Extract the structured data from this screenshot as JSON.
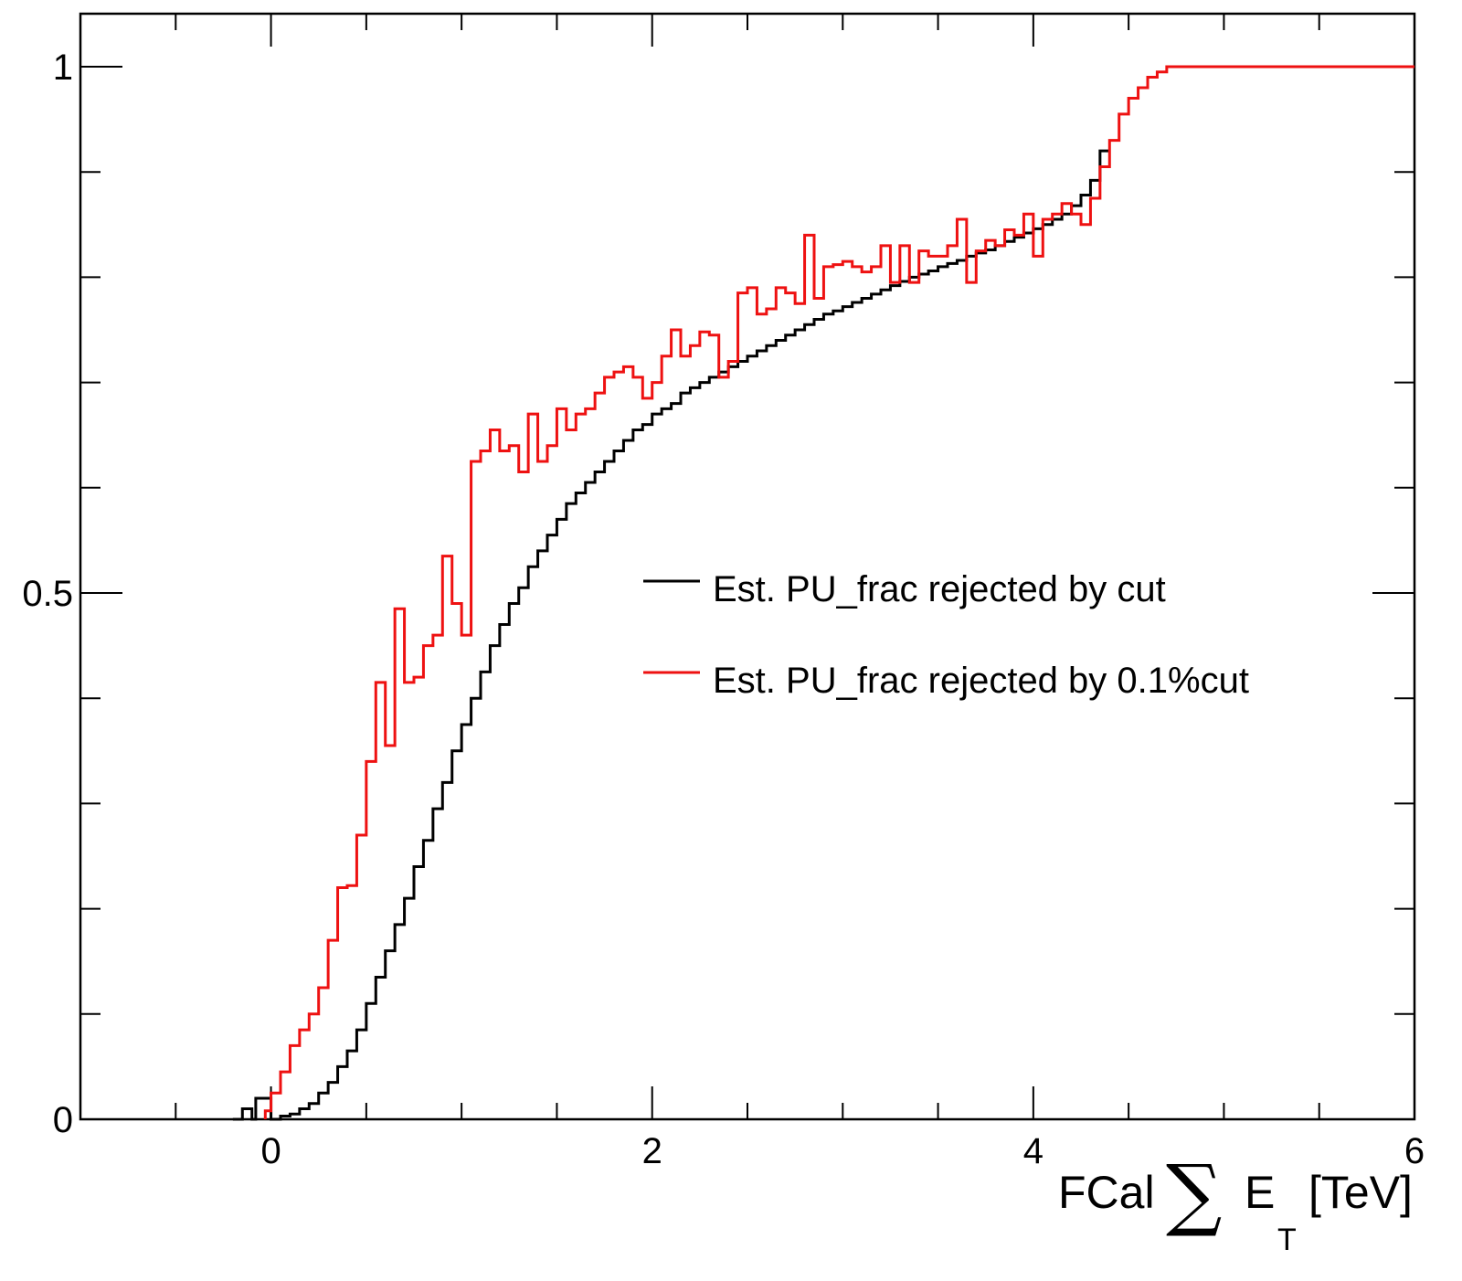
{
  "chart_data": {
    "type": "line",
    "style": "step histogram (cumulative fraction)",
    "title": "",
    "xlabel": "FCal ∑ E_T [TeV]",
    "xlabel_parts": {
      "prefix": "FCal",
      "sum_symbol": "∑",
      "var": "E",
      "subscript": "T",
      "unit": "[TeV]"
    },
    "ylabel": "",
    "xlim": [
      -1,
      6
    ],
    "ylim": [
      0,
      1.05
    ],
    "x_ticks": [
      {
        "value": 0,
        "label": "0"
      },
      {
        "value": 2,
        "label": "2"
      },
      {
        "value": 4,
        "label": "4"
      },
      {
        "value": 6,
        "label": "6"
      }
    ],
    "y_ticks": [
      {
        "value": 0,
        "label": "0"
      },
      {
        "value": 0.5,
        "label": "0.5"
      },
      {
        "value": 1,
        "label": "1"
      }
    ],
    "x_minor_step": 0.5,
    "y_minor_step": 0.1,
    "grid": false,
    "legend_position": "center-right",
    "series": [
      {
        "name": "Est. PU_frac rejected by cut",
        "color": "#000000",
        "points": [
          [
            -0.2,
            0
          ],
          [
            -0.15,
            0.01
          ],
          [
            -0.1,
            0
          ],
          [
            -0.08,
            0.02
          ],
          [
            -0.03,
            0.02
          ],
          [
            0,
            0
          ],
          [
            0.05,
            0.003
          ],
          [
            0.1,
            0.005
          ],
          [
            0.15,
            0.01
          ],
          [
            0.2,
            0.015
          ],
          [
            0.25,
            0.025
          ],
          [
            0.3,
            0.035
          ],
          [
            0.35,
            0.05
          ],
          [
            0.4,
            0.065
          ],
          [
            0.45,
            0.085
          ],
          [
            0.5,
            0.11
          ],
          [
            0.55,
            0.135
          ],
          [
            0.6,
            0.16
          ],
          [
            0.65,
            0.185
          ],
          [
            0.7,
            0.21
          ],
          [
            0.75,
            0.24
          ],
          [
            0.8,
            0.265
          ],
          [
            0.85,
            0.295
          ],
          [
            0.9,
            0.32
          ],
          [
            0.95,
            0.35
          ],
          [
            1.0,
            0.375
          ],
          [
            1.05,
            0.4
          ],
          [
            1.1,
            0.425
          ],
          [
            1.15,
            0.45
          ],
          [
            1.2,
            0.47
          ],
          [
            1.25,
            0.49
          ],
          [
            1.3,
            0.505
          ],
          [
            1.35,
            0.525
          ],
          [
            1.4,
            0.54
          ],
          [
            1.45,
            0.555
          ],
          [
            1.5,
            0.57
          ],
          [
            1.55,
            0.585
          ],
          [
            1.6,
            0.595
          ],
          [
            1.65,
            0.605
          ],
          [
            1.7,
            0.615
          ],
          [
            1.75,
            0.625
          ],
          [
            1.8,
            0.635
          ],
          [
            1.85,
            0.645
          ],
          [
            1.9,
            0.655
          ],
          [
            1.95,
            0.66
          ],
          [
            2.0,
            0.67
          ],
          [
            2.05,
            0.675
          ],
          [
            2.1,
            0.68
          ],
          [
            2.15,
            0.69
          ],
          [
            2.2,
            0.695
          ],
          [
            2.25,
            0.7
          ],
          [
            2.3,
            0.705
          ],
          [
            2.35,
            0.71
          ],
          [
            2.4,
            0.715
          ],
          [
            2.45,
            0.72
          ],
          [
            2.5,
            0.725
          ],
          [
            2.55,
            0.73
          ],
          [
            2.6,
            0.735
          ],
          [
            2.65,
            0.74
          ],
          [
            2.7,
            0.745
          ],
          [
            2.75,
            0.75
          ],
          [
            2.8,
            0.755
          ],
          [
            2.85,
            0.76
          ],
          [
            2.9,
            0.765
          ],
          [
            2.95,
            0.768
          ],
          [
            3.0,
            0.772
          ],
          [
            3.05,
            0.776
          ],
          [
            3.1,
            0.78
          ],
          [
            3.15,
            0.784
          ],
          [
            3.2,
            0.788
          ],
          [
            3.25,
            0.792
          ],
          [
            3.3,
            0.796
          ],
          [
            3.35,
            0.8
          ],
          [
            3.4,
            0.803
          ],
          [
            3.45,
            0.806
          ],
          [
            3.5,
            0.81
          ],
          [
            3.55,
            0.813
          ],
          [
            3.6,
            0.816
          ],
          [
            3.65,
            0.82
          ],
          [
            3.7,
            0.823
          ],
          [
            3.75,
            0.826
          ],
          [
            3.8,
            0.83
          ],
          [
            3.85,
            0.834
          ],
          [
            3.9,
            0.838
          ],
          [
            3.95,
            0.842
          ],
          [
            4.0,
            0.846
          ],
          [
            4.05,
            0.85
          ],
          [
            4.1,
            0.855
          ],
          [
            4.15,
            0.86
          ],
          [
            4.2,
            0.868
          ],
          [
            4.25,
            0.878
          ],
          [
            4.3,
            0.892
          ],
          [
            4.35,
            0.92
          ],
          [
            4.4,
            0.92
          ]
        ]
      },
      {
        "name": "Est. PU_frac rejected by 0.1%cut",
        "color": "#ee1111",
        "points": [
          [
            -0.03,
            0.008
          ],
          [
            0.0,
            0.025
          ],
          [
            0.05,
            0.045
          ],
          [
            0.1,
            0.07
          ],
          [
            0.15,
            0.085
          ],
          [
            0.2,
            0.1
          ],
          [
            0.25,
            0.125
          ],
          [
            0.3,
            0.17
          ],
          [
            0.35,
            0.22
          ],
          [
            0.4,
            0.222
          ],
          [
            0.45,
            0.27
          ],
          [
            0.5,
            0.34
          ],
          [
            0.55,
            0.415
          ],
          [
            0.6,
            0.355
          ],
          [
            0.65,
            0.485
          ],
          [
            0.7,
            0.415
          ],
          [
            0.75,
            0.42
          ],
          [
            0.8,
            0.45
          ],
          [
            0.85,
            0.46
          ],
          [
            0.9,
            0.535
          ],
          [
            0.95,
            0.49
          ],
          [
            1.0,
            0.46
          ],
          [
            1.05,
            0.625
          ],
          [
            1.1,
            0.635
          ],
          [
            1.15,
            0.655
          ],
          [
            1.2,
            0.635
          ],
          [
            1.25,
            0.64
          ],
          [
            1.3,
            0.615
          ],
          [
            1.35,
            0.67
          ],
          [
            1.4,
            0.625
          ],
          [
            1.45,
            0.64
          ],
          [
            1.5,
            0.675
          ],
          [
            1.55,
            0.655
          ],
          [
            1.6,
            0.67
          ],
          [
            1.65,
            0.675
          ],
          [
            1.7,
            0.69
          ],
          [
            1.75,
            0.705
          ],
          [
            1.8,
            0.71
          ],
          [
            1.85,
            0.715
          ],
          [
            1.9,
            0.705
          ],
          [
            1.95,
            0.685
          ],
          [
            2.0,
            0.7
          ],
          [
            2.05,
            0.725
          ],
          [
            2.1,
            0.75
          ],
          [
            2.15,
            0.725
          ],
          [
            2.2,
            0.735
          ],
          [
            2.25,
            0.748
          ],
          [
            2.3,
            0.745
          ],
          [
            2.35,
            0.705
          ],
          [
            2.4,
            0.72
          ],
          [
            2.45,
            0.785
          ],
          [
            2.5,
            0.79
          ],
          [
            2.55,
            0.765
          ],
          [
            2.6,
            0.77
          ],
          [
            2.65,
            0.79
          ],
          [
            2.7,
            0.785
          ],
          [
            2.75,
            0.775
          ],
          [
            2.8,
            0.84
          ],
          [
            2.85,
            0.78
          ],
          [
            2.9,
            0.81
          ],
          [
            2.95,
            0.812
          ],
          [
            3.0,
            0.815
          ],
          [
            3.05,
            0.81
          ],
          [
            3.1,
            0.805
          ],
          [
            3.15,
            0.81
          ],
          [
            3.2,
            0.83
          ],
          [
            3.25,
            0.795
          ],
          [
            3.3,
            0.83
          ],
          [
            3.35,
            0.795
          ],
          [
            3.4,
            0.825
          ],
          [
            3.45,
            0.82
          ],
          [
            3.5,
            0.82
          ],
          [
            3.55,
            0.83
          ],
          [
            3.6,
            0.855
          ],
          [
            3.65,
            0.795
          ],
          [
            3.7,
            0.825
          ],
          [
            3.75,
            0.835
          ],
          [
            3.8,
            0.83
          ],
          [
            3.85,
            0.845
          ],
          [
            3.9,
            0.84
          ],
          [
            3.95,
            0.86
          ],
          [
            4.0,
            0.82
          ],
          [
            4.05,
            0.855
          ],
          [
            4.1,
            0.86
          ],
          [
            4.15,
            0.87
          ],
          [
            4.2,
            0.86
          ],
          [
            4.25,
            0.85
          ],
          [
            4.3,
            0.875
          ],
          [
            4.35,
            0.905
          ],
          [
            4.4,
            0.93
          ],
          [
            4.45,
            0.955
          ],
          [
            4.5,
            0.97
          ],
          [
            4.55,
            0.98
          ],
          [
            4.6,
            0.99
          ],
          [
            4.65,
            0.995
          ],
          [
            4.7,
            1.0
          ],
          [
            6.0,
            1.0
          ]
        ]
      }
    ]
  }
}
